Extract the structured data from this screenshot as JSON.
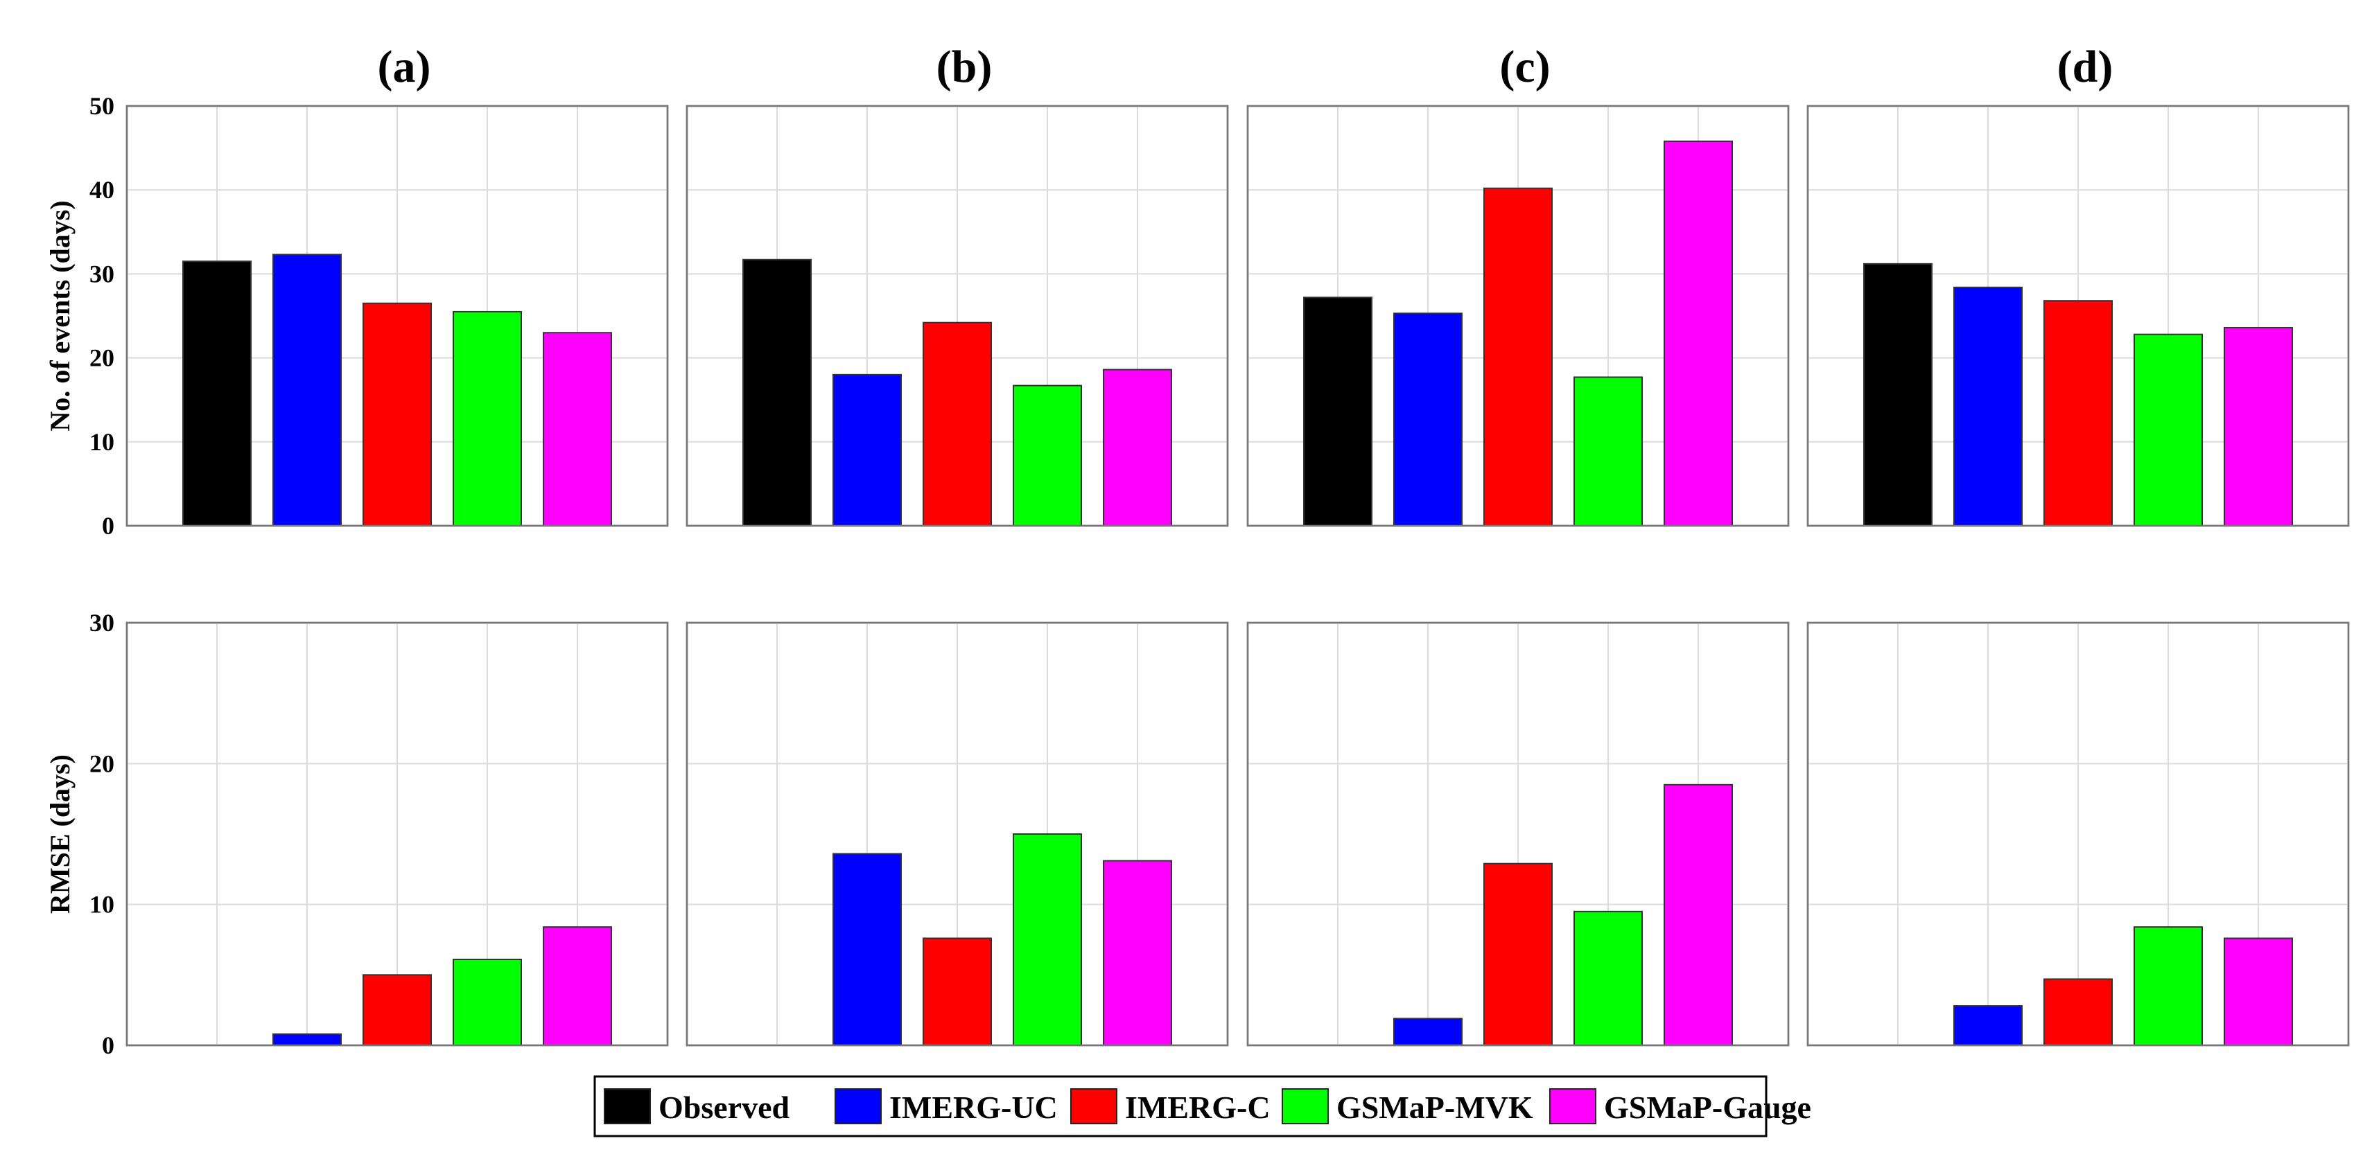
{
  "chart_data": [
    {
      "type": "bar",
      "row": "top",
      "panel": "a",
      "title": "(a)",
      "ylabel": "No. of events (days)",
      "ylim": [
        0,
        50
      ],
      "yticks": [
        0,
        10,
        20,
        30,
        40,
        50
      ],
      "categories": [
        "Observed",
        "IMERG-UC",
        "IMERG-C",
        "GSMaP-MVK",
        "GSMaP-Gauge"
      ],
      "values": [
        31.5,
        32.3,
        26.5,
        25.5,
        23.0
      ],
      "grid": true
    },
    {
      "type": "bar",
      "row": "top",
      "panel": "b",
      "title": "(b)",
      "ylim": [
        0,
        50
      ],
      "categories": [
        "Observed",
        "IMERG-UC",
        "IMERG-C",
        "GSMaP-MVK",
        "GSMaP-Gauge"
      ],
      "values": [
        31.7,
        18.0,
        24.2,
        16.7,
        18.6
      ],
      "grid": true
    },
    {
      "type": "bar",
      "row": "top",
      "panel": "c",
      "title": "(c)",
      "ylim": [
        0,
        50
      ],
      "categories": [
        "Observed",
        "IMERG-UC",
        "IMERG-C",
        "GSMaP-MVK",
        "GSMaP-Gauge"
      ],
      "values": [
        27.2,
        25.3,
        40.2,
        17.7,
        45.8
      ],
      "grid": true
    },
    {
      "type": "bar",
      "row": "top",
      "panel": "d",
      "title": "(d)",
      "ylim": [
        0,
        50
      ],
      "categories": [
        "Observed",
        "IMERG-UC",
        "IMERG-C",
        "GSMaP-MVK",
        "GSMaP-Gauge"
      ],
      "values": [
        31.2,
        28.4,
        26.8,
        22.8,
        23.6
      ],
      "grid": true
    },
    {
      "type": "bar",
      "row": "bottom",
      "panel": "a",
      "ylabel": "RMSE (days)",
      "ylim": [
        0,
        30
      ],
      "yticks": [
        0,
        10,
        20,
        30
      ],
      "categories": [
        "Observed",
        "IMERG-UC",
        "IMERG-C",
        "GSMaP-MVK",
        "GSMaP-Gauge"
      ],
      "values": [
        0,
        0.8,
        5.0,
        6.1,
        8.4
      ],
      "grid": true
    },
    {
      "type": "bar",
      "row": "bottom",
      "panel": "b",
      "ylim": [
        0,
        30
      ],
      "categories": [
        "Observed",
        "IMERG-UC",
        "IMERG-C",
        "GSMaP-MVK",
        "GSMaP-Gauge"
      ],
      "values": [
        0,
        13.6,
        7.6,
        15.0,
        13.1
      ],
      "grid": true
    },
    {
      "type": "bar",
      "row": "bottom",
      "panel": "c",
      "ylim": [
        0,
        30
      ],
      "categories": [
        "Observed",
        "IMERG-UC",
        "IMERG-C",
        "GSMaP-MVK",
        "GSMaP-Gauge"
      ],
      "values": [
        0,
        1.9,
        12.9,
        9.5,
        18.5
      ],
      "grid": true
    },
    {
      "type": "bar",
      "row": "bottom",
      "panel": "d",
      "ylim": [
        0,
        30
      ],
      "categories": [
        "Observed",
        "IMERG-UC",
        "IMERG-C",
        "GSMaP-MVK",
        "GSMaP-Gauge"
      ],
      "values": [
        0,
        2.8,
        4.7,
        8.4,
        7.6
      ],
      "grid": true
    }
  ],
  "legend": {
    "placement": "bottom-center",
    "entries": [
      {
        "label": "Observed",
        "color": "#000000"
      },
      {
        "label": "IMERG-UC",
        "color": "#0000ff"
      },
      {
        "label": "IMERG-C",
        "color": "#ff0000"
      },
      {
        "label": "GSMaP-MVK",
        "color": "#00ff00"
      },
      {
        "label": "GSMaP-Gauge",
        "color": "#ff00ff"
      }
    ]
  }
}
